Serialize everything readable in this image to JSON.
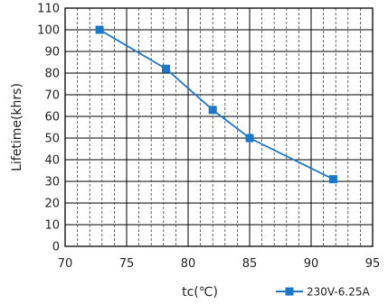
{
  "chart_data": {
    "type": "line",
    "title": "",
    "xlabel": "tc(℃)",
    "ylabel": "Lifetime(khrs)",
    "xlim": [
      70,
      95
    ],
    "ylim": [
      0,
      110
    ],
    "xticks": [
      70,
      75,
      80,
      85,
      90,
      95
    ],
    "yticks": [
      0,
      10,
      20,
      30,
      40,
      50,
      60,
      70,
      80,
      90,
      100,
      110
    ],
    "grid": true,
    "legend_position": "bottom-right",
    "series": [
      {
        "name": "230V-6.25A",
        "color": "#1f77c8",
        "marker": "square",
        "x": [
          72.8,
          78.2,
          82.0,
          85.0,
          91.8
        ],
        "y": [
          100,
          82,
          63,
          50,
          31
        ]
      }
    ]
  }
}
